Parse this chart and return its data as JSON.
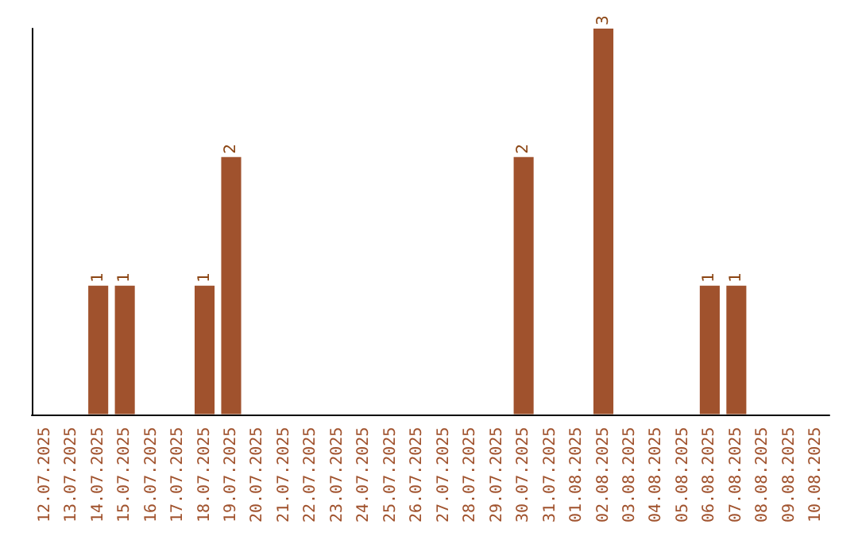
{
  "chart_data": {
    "type": "bar",
    "categories": [
      "12.07.2025",
      "13.07.2025",
      "14.07.2025",
      "15.07.2025",
      "16.07.2025",
      "17.07.2025",
      "18.07.2025",
      "19.07.2025",
      "20.07.2025",
      "21.07.2025",
      "22.07.2025",
      "23.07.2025",
      "24.07.2025",
      "25.07.2025",
      "26.07.2025",
      "27.07.2025",
      "28.07.2025",
      "29.07.2025",
      "30.07.2025",
      "31.07.2025",
      "01.08.2025",
      "02.08.2025",
      "03.08.2025",
      "04.08.2025",
      "05.08.2025",
      "06.08.2025",
      "07.08.2025",
      "08.08.2025",
      "09.08.2025",
      "10.08.2025"
    ],
    "values": [
      0,
      0,
      1,
      1,
      0,
      0,
      1,
      2,
      0,
      0,
      0,
      0,
      0,
      0,
      0,
      0,
      0,
      0,
      2,
      0,
      0,
      3,
      0,
      0,
      0,
      1,
      1,
      0,
      0,
      0
    ],
    "value_labels": [
      null,
      null,
      "1",
      "1",
      null,
      null,
      "1",
      "2",
      null,
      null,
      null,
      null,
      null,
      null,
      null,
      null,
      null,
      null,
      "2",
      null,
      null,
      "3",
      null,
      null,
      null,
      "1",
      "1",
      null,
      null,
      null
    ],
    "color": "#a0522d",
    "tick_labels": "x",
    "grid": false
  }
}
